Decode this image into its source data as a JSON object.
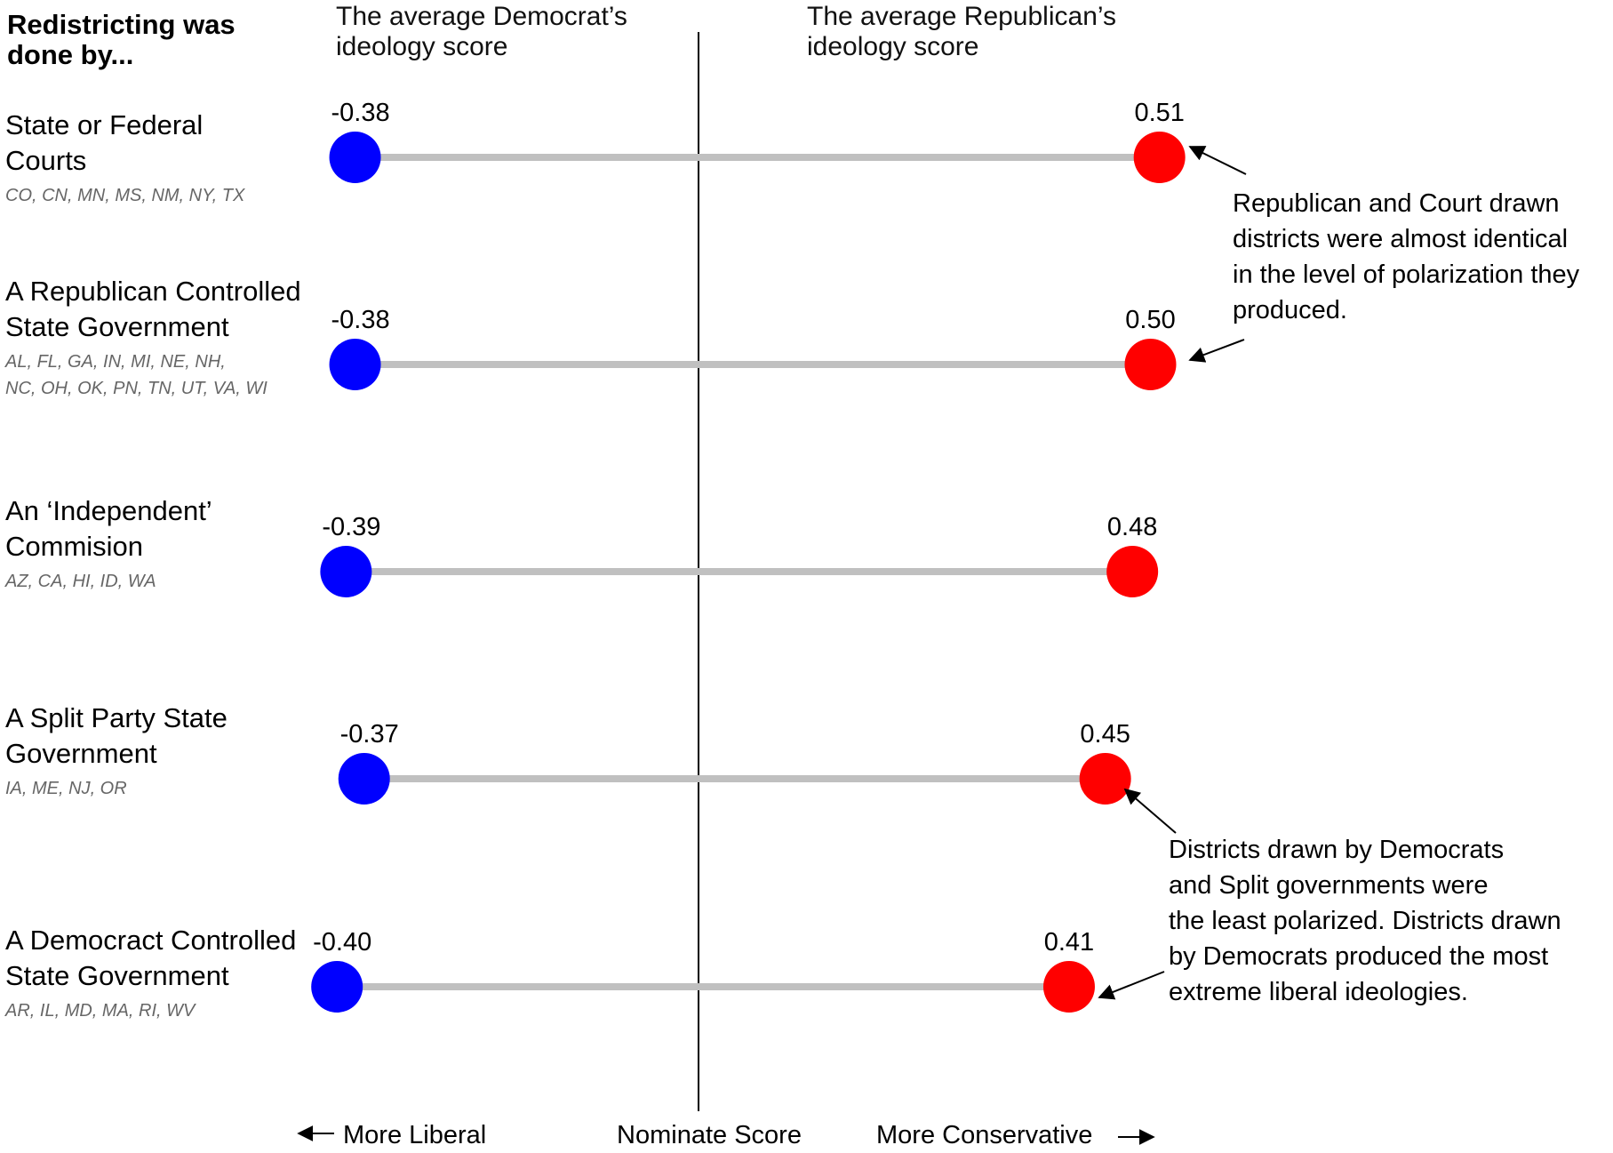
{
  "chart_data": {
    "type": "dumbbell",
    "row_header": [
      "Redistricting was",
      "done by..."
    ],
    "column_headers": {
      "democrat": [
        "The average Democrat’s",
        "ideology score"
      ],
      "republican": [
        "The average Republican’s",
        "ideology score"
      ]
    },
    "rows": [
      {
        "label": [
          "State or Federal",
          "Courts"
        ],
        "states": [
          "CO, CN, MN, MS, NM, NY, TX"
        ],
        "democrat": -0.38,
        "republican": 0.51,
        "democrat_label": "-0.38",
        "republican_label": "0.51"
      },
      {
        "label": [
          "A Republican Controlled",
          "State Government"
        ],
        "states": [
          "AL, FL, GA, IN, MI, NE, NH,",
          "NC, OH, OK, PN, TN, UT, VA, WI"
        ],
        "democrat": -0.38,
        "republican": 0.5,
        "democrat_label": "-0.38",
        "republican_label": "0.50"
      },
      {
        "label": [
          "An ‘Independent’",
          "Commision"
        ],
        "states": [
          "AZ, CA, HI, ID, WA"
        ],
        "democrat": -0.39,
        "republican": 0.48,
        "democrat_label": "-0.39",
        "republican_label": "0.48"
      },
      {
        "label": [
          "A Split Party State",
          "Government"
        ],
        "states": [
          "IA, ME, NJ, OR"
        ],
        "democrat": -0.37,
        "republican": 0.45,
        "democrat_label": "-0.37",
        "republican_label": "0.45"
      },
      {
        "label": [
          "A Democract Controlled",
          "State Government"
        ],
        "states": [
          "AR, IL, MD, MA, RI, WV"
        ],
        "democrat": -0.4,
        "republican": 0.41,
        "democrat_label": "-0.40",
        "republican_label": "0.41"
      }
    ],
    "annotations": [
      {
        "text": [
          "Republican and Court drawn",
          "districts were almost identical",
          "in the level of polarization they",
          "produced."
        ]
      },
      {
        "text": [
          "Districts drawn by Democrats",
          "and Split governments were",
          "the least polarized. Districts drawn",
          "by Democrats produced the most",
          "extreme liberal ideologies."
        ]
      }
    ],
    "axis": {
      "left_label": "More Liberal",
      "center_label": "Nominate Score",
      "right_label": "More Conservative"
    },
    "colors": {
      "democrat": "#0000ff",
      "republican": "#ff0000",
      "connector": "#c0c0c0",
      "states_text": "#666666"
    }
  }
}
